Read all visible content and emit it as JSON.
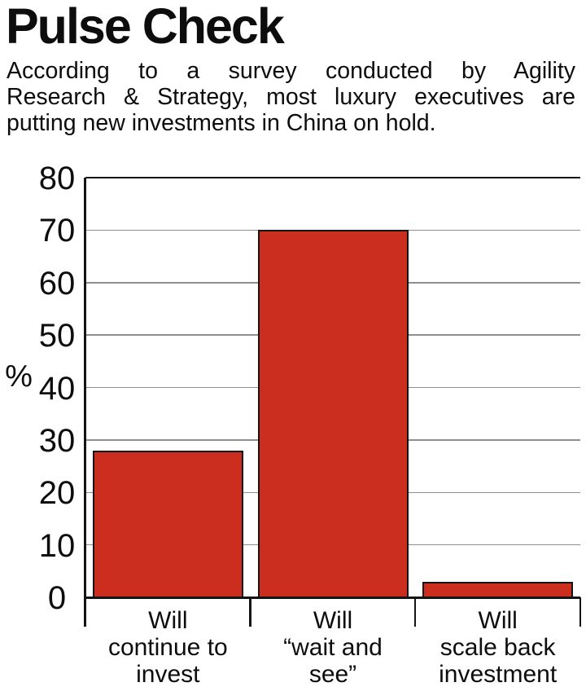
{
  "title": "Pulse Check",
  "subtitle_lines": [
    "According to a survey conducted by Agility",
    "Research & Strategy, most luxury executives are",
    "putting new investments in China on hold."
  ],
  "chart_data": {
    "type": "bar",
    "title": "Pulse Check",
    "subtitle": "According to a survey conducted by Agility Research & Strategy, most luxury executives are putting new investments in China on hold.",
    "categories": [
      "Will continue to invest",
      "Will “wait and see”",
      "Will scale back investment"
    ],
    "category_label_lines": [
      [
        "Will",
        "continue to",
        "invest"
      ],
      [
        "Will",
        "“wait and",
        "see”"
      ],
      [
        "Will",
        "scale back",
        "investment"
      ]
    ],
    "values": [
      28,
      70,
      3
    ],
    "unit": "percent",
    "xlabel": "",
    "ylabel": "%",
    "ylim": [
      0,
      80
    ],
    "yticks": [
      0,
      10,
      20,
      30,
      40,
      50,
      60,
      70,
      80
    ],
    "grid": true,
    "legend": false,
    "colors": {
      "bar_fill": "#cb2e1f",
      "bar_border": "#141414",
      "axis": "#141414",
      "gridline": "#8f8f8f",
      "text": "#0d0d0d"
    }
  }
}
